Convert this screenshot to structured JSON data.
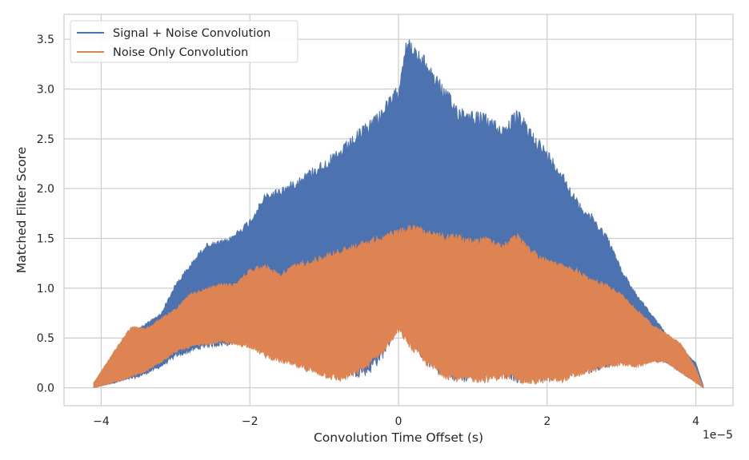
{
  "chart_data": {
    "type": "area",
    "title": "",
    "xlabel": "Convolution Time Offset (s)",
    "ylabel": "Matched Filter Score",
    "x_offset_text": "1e−5",
    "xlim": [
      -4.5e-05,
      4.5e-05
    ],
    "ylim": [
      -0.18,
      3.75
    ],
    "x_ticks": [
      -4e-05,
      -2e-05,
      0,
      2e-05,
      4e-05
    ],
    "x_tick_labels": [
      "−4",
      "−2",
      "0",
      "2",
      "4"
    ],
    "y_ticks": [
      0.0,
      0.5,
      1.0,
      1.5,
      2.0,
      2.5,
      3.0,
      3.5
    ],
    "y_tick_labels": [
      "0.0",
      "0.5",
      "1.0",
      "1.5",
      "2.0",
      "2.5",
      "3.0",
      "3.5"
    ],
    "grid": true,
    "legend_position": "top-left",
    "series": [
      {
        "name": "Signal + Noise Convolution",
        "color": "#4c72b0",
        "x": [
          -4.1e-05,
          -3.8e-05,
          -3.5e-05,
          -3.2e-05,
          -3e-05,
          -2.6e-05,
          -2.3e-05,
          -2e-05,
          -1.8e-05,
          -1.5e-05,
          -1.2e-05,
          -1e-05,
          -8e-06,
          -6e-06,
          -4e-06,
          -2e-06,
          0,
          1e-06,
          2e-06,
          4e-06,
          6e-06,
          8e-06,
          1e-05,
          1.2e-05,
          1.4e-05,
          1.6e-05,
          1.8e-05,
          2e-05,
          2.2e-05,
          2.4e-05,
          2.6e-05,
          2.8e-05,
          3e-05,
          3.2e-05,
          3.4e-05,
          3.6e-05,
          3.8e-05,
          4e-05,
          4.1e-05
        ],
        "upper": [
          0.05,
          0.35,
          0.6,
          0.75,
          1.05,
          1.45,
          1.5,
          1.7,
          1.95,
          2.05,
          2.2,
          2.3,
          2.4,
          2.55,
          2.7,
          2.85,
          3.05,
          3.55,
          3.45,
          3.3,
          3.05,
          2.85,
          2.8,
          2.75,
          2.65,
          2.8,
          2.6,
          2.4,
          2.2,
          1.9,
          1.75,
          1.55,
          1.2,
          0.95,
          0.75,
          0.55,
          0.4,
          0.25,
          0.02
        ],
        "lower": [
          0.0,
          0.05,
          0.1,
          0.2,
          0.3,
          0.4,
          0.42,
          0.45,
          0.4,
          0.35,
          0.3,
          0.2,
          0.15,
          0.1,
          0.12,
          0.3,
          0.6,
          0.5,
          0.4,
          0.2,
          0.1,
          0.05,
          0.05,
          0.1,
          0.1,
          0.05,
          0.05,
          0.05,
          0.1,
          0.12,
          0.15,
          0.2,
          0.25,
          0.3,
          0.3,
          0.25,
          0.15,
          0.05,
          0.0
        ]
      },
      {
        "name": "Noise Only Convolution",
        "color": "#dd8452",
        "x": [
          -4.1e-05,
          -3.8e-05,
          -3.6e-05,
          -3.4e-05,
          -3.2e-05,
          -3e-05,
          -2.8e-05,
          -2.6e-05,
          -2.4e-05,
          -2.2e-05,
          -2e-05,
          -1.8e-05,
          -1.6e-05,
          -1.4e-05,
          -1.2e-05,
          -1e-05,
          -8e-06,
          -6e-06,
          -4e-06,
          -2e-06,
          0,
          2e-06,
          4e-06,
          6e-06,
          8e-06,
          1e-05,
          1.2e-05,
          1.4e-05,
          1.6e-05,
          1.8e-05,
          2e-05,
          2.2e-05,
          2.4e-05,
          2.6e-05,
          2.8e-05,
          3e-05,
          3.2e-05,
          3.4e-05,
          3.6e-05,
          3.8e-05,
          4e-05,
          4.1e-05
        ],
        "upper": [
          0.05,
          0.4,
          0.62,
          0.6,
          0.7,
          0.8,
          0.95,
          1.0,
          1.05,
          1.05,
          1.2,
          1.25,
          1.15,
          1.25,
          1.3,
          1.35,
          1.4,
          1.45,
          1.5,
          1.55,
          1.6,
          1.65,
          1.6,
          1.55,
          1.55,
          1.5,
          1.55,
          1.45,
          1.55,
          1.4,
          1.3,
          1.25,
          1.2,
          1.1,
          1.05,
          0.95,
          0.8,
          0.65,
          0.55,
          0.45,
          0.2,
          0.0
        ],
        "lower": [
          0.0,
          0.05,
          0.1,
          0.15,
          0.25,
          0.35,
          0.4,
          0.42,
          0.45,
          0.42,
          0.4,
          0.3,
          0.25,
          0.2,
          0.15,
          0.1,
          0.05,
          0.1,
          0.2,
          0.35,
          0.55,
          0.35,
          0.2,
          0.1,
          0.05,
          0.05,
          0.05,
          0.08,
          0.05,
          0.02,
          0.05,
          0.05,
          0.1,
          0.15,
          0.2,
          0.22,
          0.2,
          0.25,
          0.25,
          0.15,
          0.05,
          0.0
        ]
      }
    ]
  }
}
